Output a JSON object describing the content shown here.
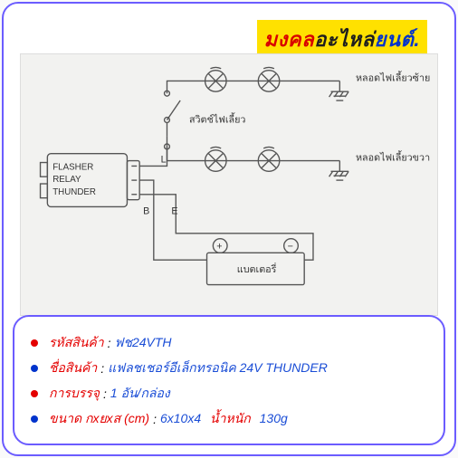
{
  "brand": {
    "part1": "มงคล",
    "part2": "อะไหล่",
    "part3": "ยนต์",
    "part4": "."
  },
  "diagram": {
    "background_color": "#f2f2f0",
    "stroke_color": "#555555",
    "stroke_width": 1.4,
    "font_color": "#333333",
    "flasher_box": {
      "lines": [
        "FLASHER",
        "RELAY",
        "THUNDER"
      ]
    },
    "labels": {
      "turn_switch": "สวิตช์ไฟเลี้ยว",
      "left_lamp": "หลอดไฟเลี้ยวซ้าย",
      "right_lamp": "หลอดไฟเลี้ยวขวา",
      "battery": "แบตเตอรี่",
      "terminal_L": "L",
      "terminal_B": "B",
      "terminal_E": "E",
      "plus": "+",
      "minus": "−"
    }
  },
  "info": {
    "rows": [
      {
        "bullet_color": "red",
        "label": "รหัสสินค้า",
        "values": [
          {
            "text": "ฟช24VTH",
            "color": "blue"
          }
        ]
      },
      {
        "bullet_color": "blue",
        "label": "ชื่อสินค้า",
        "values": [
          {
            "text": "แฟลชเชอร์อีเล็กทรอนิค 24V THUNDER",
            "color": "blue"
          }
        ]
      },
      {
        "bullet_color": "red",
        "label": "การบรรจุ",
        "values": [
          {
            "text": "1 อัน/กล่อง",
            "color": "blue"
          }
        ]
      },
      {
        "bullet_color": "blue",
        "label": "ขนาด กxยxส (cm)",
        "values": [
          {
            "text": "6x10x4",
            "color": "blue"
          },
          {
            "text": "น้ำหนัก",
            "color": "red"
          },
          {
            "text": "130g",
            "color": "blue"
          }
        ]
      }
    ]
  },
  "colors": {
    "frame_border": "#6b5cff",
    "brand_bg": "#ffe100",
    "red": "#e40000",
    "blue": "#1a4dd6",
    "black": "#1e1e1e"
  }
}
